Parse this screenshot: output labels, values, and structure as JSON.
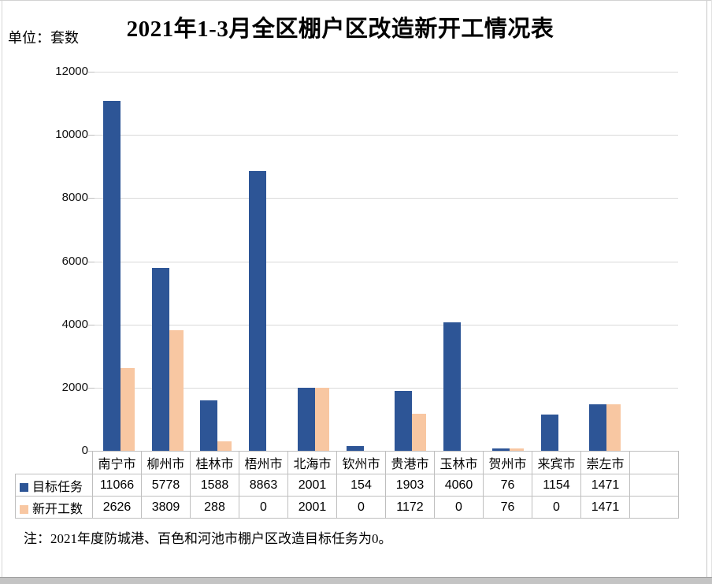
{
  "title": "2021年1-3月全区棚户区改造新开工情况表",
  "unit_label": "单位：套数",
  "footnote": "注：2021年度防城港、百色和河池市棚户区改造目标任务为0。",
  "colors": {
    "target_series": "#2d5596",
    "started_series": "#f8c7a2",
    "gridline": "#d9d9d9",
    "table_border": "#bfbfbf"
  },
  "chart_data": {
    "type": "bar",
    "title": "2021年1-3月全区棚户区改造新开工情况表",
    "unit": "套数",
    "categories": [
      "南宁市",
      "柳州市",
      "桂林市",
      "梧州市",
      "北海市",
      "钦州市",
      "贵港市",
      "玉林市",
      "贺州市",
      "来宾市",
      "崇左市"
    ],
    "series": [
      {
        "name": "目标任务",
        "color": "#2d5596",
        "values": [
          11066,
          5778,
          1588,
          8863,
          2001,
          154,
          1903,
          4060,
          76,
          1154,
          1471
        ]
      },
      {
        "name": "新开工数",
        "color": "#f8c7a2",
        "values": [
          2626,
          3809,
          288,
          0,
          2001,
          0,
          1172,
          0,
          76,
          0,
          1471
        ]
      }
    ],
    "ylim": [
      0,
      12000
    ],
    "yticks": [
      0,
      2000,
      4000,
      6000,
      8000,
      10000,
      12000
    ],
    "grid": true,
    "legend_position": "data-table-left",
    "extra_empty_column": true
  }
}
